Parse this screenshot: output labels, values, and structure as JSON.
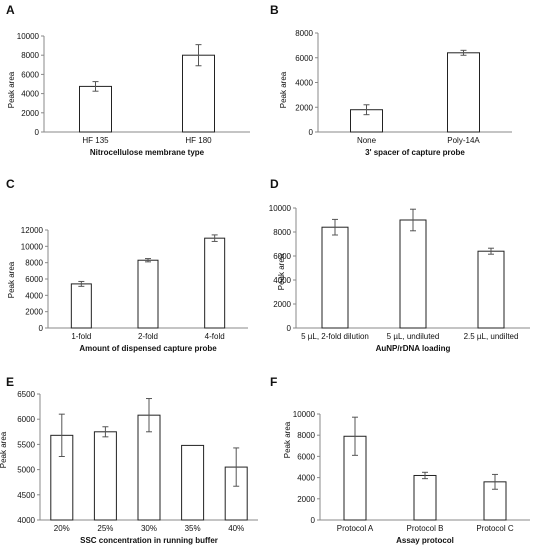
{
  "chart_data": [
    {
      "panel": "A",
      "type": "bar",
      "title": "",
      "xlabel": "Nitrocellulose membrane type",
      "ylabel": "Peak area",
      "categories": [
        "HF 135",
        "HF 180"
      ],
      "values": [
        4750,
        8000
      ],
      "errors": [
        500,
        1100
      ],
      "ylim": [
        0,
        10000
      ],
      "yticks": [
        0,
        2000,
        4000,
        6000,
        8000,
        10000
      ],
      "grid": false
    },
    {
      "panel": "B",
      "type": "bar",
      "title": "",
      "xlabel": "3' spacer of capture probe",
      "ylabel": "Peak area",
      "categories": [
        "None",
        "Poly-14A"
      ],
      "values": [
        1800,
        6400
      ],
      "errors": [
        400,
        200
      ],
      "ylim": [
        0,
        8000
      ],
      "yticks": [
        0,
        2000,
        4000,
        6000,
        8000
      ],
      "grid": false
    },
    {
      "panel": "C",
      "type": "bar",
      "title": "",
      "xlabel": "Amount of dispensed capture probe",
      "ylabel": "Peak area",
      "categories": [
        "1-fold",
        "2-fold",
        "4-fold"
      ],
      "values": [
        5400,
        8300,
        11000
      ],
      "errors": [
        300,
        200,
        400
      ],
      "ylim": [
        0,
        12000
      ],
      "yticks": [
        0,
        2000,
        4000,
        6000,
        8000,
        10000,
        12000
      ],
      "grid": false
    },
    {
      "panel": "D",
      "type": "bar",
      "title": "",
      "xlabel": "AuNP/rDNA loading",
      "ylabel": "Peak area",
      "categories": [
        "5 µL, 2-fold dilution",
        "5 µL, undiluted",
        "2.5 µL, undilted"
      ],
      "values": [
        8400,
        9000,
        6400
      ],
      "errors": [
        650,
        900,
        250
      ],
      "ylim": [
        0,
        10000
      ],
      "yticks": [
        0,
        2000,
        4000,
        6000,
        8000,
        10000
      ],
      "grid": false
    },
    {
      "panel": "E",
      "type": "bar",
      "title": "",
      "xlabel": "SSC concentration in running buffer",
      "ylabel": "Peak area",
      "categories": [
        "20%",
        "25%",
        "30%",
        "35%",
        "40%"
      ],
      "values": [
        5680,
        5750,
        6080,
        5480,
        5050
      ],
      "errors": [
        420,
        100,
        330,
        0,
        380
      ],
      "ylim": [
        4000,
        6500
      ],
      "yticks": [
        4000,
        4500,
        5000,
        5500,
        6000,
        6500
      ],
      "grid": false
    },
    {
      "panel": "F",
      "type": "bar",
      "title": "",
      "xlabel": "Assay protocol",
      "ylabel": "Peak area",
      "categories": [
        "Protocol A",
        "Protocol B",
        "Protocol C"
      ],
      "values": [
        7900,
        4200,
        3600
      ],
      "errors": [
        1800,
        300,
        700
      ],
      "ylim": [
        0,
        10000
      ],
      "yticks": [
        0,
        2000,
        4000,
        6000,
        8000,
        10000
      ],
      "grid": false
    }
  ]
}
